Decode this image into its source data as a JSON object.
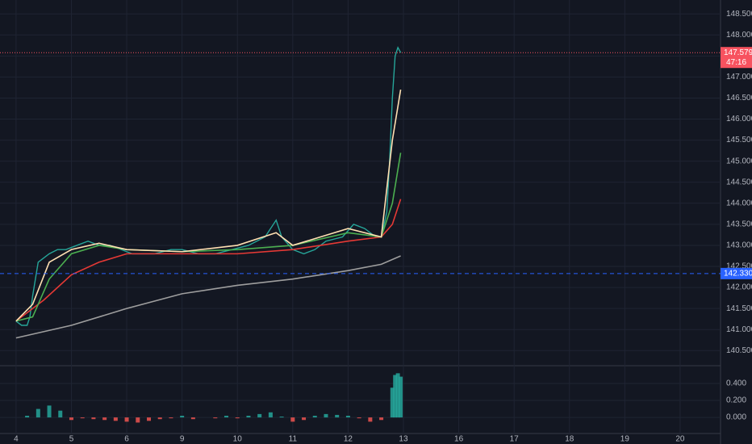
{
  "chart_data": [
    {
      "type": "line",
      "xlim": [
        -0.29,
        12.73
      ],
      "xticks": [
        {
          "value": 0,
          "label": "4"
        },
        {
          "value": 1,
          "label": "5"
        },
        {
          "value": 2,
          "label": "6"
        },
        {
          "value": 3,
          "label": "9"
        },
        {
          "value": 4,
          "label": "10"
        },
        {
          "value": 5,
          "label": "11"
        },
        {
          "value": 6,
          "label": "12"
        },
        {
          "value": 7,
          "label": "13"
        },
        {
          "value": 8,
          "label": "16"
        },
        {
          "value": 9,
          "label": "17"
        },
        {
          "value": 10,
          "label": "18"
        },
        {
          "value": 11,
          "label": "19"
        },
        {
          "value": 12,
          "label": "20"
        }
      ],
      "ylim": [
        140.16,
        148.83
      ],
      "yticks": [
        {
          "value": 140.5,
          "label": "140.500"
        },
        {
          "value": 141,
          "label": "141.000"
        },
        {
          "value": 141.5,
          "label": "141.500"
        },
        {
          "value": 142,
          "label": "142.000"
        },
        {
          "value": 142.5,
          "label": "142.500"
        },
        {
          "value": 143,
          "label": "143.000"
        },
        {
          "value": 143.5,
          "label": "143.500"
        },
        {
          "value": 144,
          "label": "144.000"
        },
        {
          "value": 144.5,
          "label": "144.500"
        },
        {
          "value": 145,
          "label": "145.000"
        },
        {
          "value": 145.5,
          "label": "145.500"
        },
        {
          "value": 146,
          "label": "146.000"
        },
        {
          "value": 146.5,
          "label": "146.500"
        },
        {
          "value": 147,
          "label": "147.000"
        },
        {
          "value": 147.5,
          "label": "147.500"
        },
        {
          "value": 148,
          "label": "148.000"
        },
        {
          "value": 148.5,
          "label": "148.500"
        }
      ],
      "grid": true,
      "series": [
        {
          "color": "#26a69a",
          "x": [
            0,
            0.1,
            0.2,
            0.25,
            0.3,
            0.4,
            0.5,
            0.6,
            0.75,
            0.9,
            1.1,
            1.3,
            1.5,
            1.7,
            1.9,
            2.1,
            2.3,
            2.5,
            2.8,
            3.0,
            3.3,
            3.6,
            3.9,
            4.2,
            4.5,
            4.7,
            4.8,
            5.0,
            5.2,
            5.4,
            5.6,
            5.9,
            6.1,
            6.3,
            6.5,
            6.6,
            6.7,
            6.75,
            6.8,
            6.85,
            6.9,
            6.95
          ],
          "values": [
            141.2,
            141.1,
            141.1,
            141.3,
            141.8,
            142.6,
            142.7,
            142.8,
            142.9,
            142.9,
            143.0,
            143.1,
            143.0,
            143.0,
            142.9,
            142.8,
            142.8,
            142.8,
            142.9,
            142.9,
            142.8,
            142.8,
            142.9,
            143.0,
            143.2,
            143.6,
            143.2,
            142.9,
            142.8,
            142.9,
            143.1,
            143.2,
            143.5,
            143.4,
            143.2,
            143.2,
            143.8,
            145.0,
            146.5,
            147.5,
            147.7,
            147.579
          ]
        },
        {
          "color": "#9e9e9e",
          "x": [
            0,
            1,
            2,
            3,
            4,
            5,
            6,
            6.6,
            6.95
          ],
          "values": [
            140.8,
            141.1,
            141.5,
            141.85,
            142.05,
            142.2,
            142.4,
            142.55,
            142.75
          ]
        },
        {
          "color": "#e53935",
          "x": [
            0,
            0.5,
            1,
            1.5,
            2,
            3,
            4,
            5,
            6,
            6.6,
            6.8,
            6.95
          ],
          "values": [
            141.2,
            141.7,
            142.3,
            142.6,
            142.8,
            142.8,
            142.8,
            142.9,
            143.1,
            143.2,
            143.5,
            144.1
          ]
        },
        {
          "color": "#4caf50",
          "x": [
            0,
            0.3,
            0.6,
            1,
            1.5,
            2,
            3,
            4,
            5,
            6,
            6.6,
            6.8,
            6.95
          ],
          "values": [
            141.2,
            141.3,
            142.2,
            142.8,
            143.0,
            142.9,
            142.85,
            142.9,
            143.0,
            143.3,
            143.2,
            144.0,
            145.2
          ]
        },
        {
          "color": "#ffe0b2",
          "x": [
            0,
            0.3,
            0.6,
            1,
            1.5,
            2,
            3,
            4,
            4.7,
            5,
            6,
            6.6,
            6.8,
            6.95
          ],
          "values": [
            141.2,
            141.6,
            142.6,
            142.9,
            143.05,
            142.9,
            142.85,
            143.0,
            143.3,
            143.0,
            143.4,
            143.2,
            145.5,
            146.7
          ]
        }
      ],
      "last_price": 147.579,
      "last_price_color": "#f7525f",
      "countdown": "47:16",
      "horizontal_line": {
        "value": 142.33,
        "label": "142.330",
        "color": "#2962ff"
      }
    },
    {
      "type": "histogram",
      "ylim": [
        -0.17,
        0.59
      ],
      "yticks": [
        {
          "value": 0,
          "label": "0.000"
        },
        {
          "value": 0.2,
          "label": "0.200"
        },
        {
          "value": 0.4,
          "label": "0.400"
        }
      ],
      "up_color": "#26a69a",
      "down_color": "#ef5350",
      "x": [
        0,
        0.2,
        0.4,
        0.6,
        0.8,
        1.0,
        1.2,
        1.4,
        1.6,
        1.8,
        2.0,
        2.2,
        2.4,
        2.6,
        2.8,
        3.0,
        3.2,
        3.4,
        3.6,
        3.8,
        4.0,
        4.2,
        4.4,
        4.6,
        4.8,
        5.0,
        5.2,
        5.4,
        5.6,
        5.8,
        6.0,
        6.2,
        6.4,
        6.6,
        6.8,
        6.85,
        6.9,
        6.95
      ],
      "values": [
        0.0,
        0.02,
        0.1,
        0.14,
        0.08,
        -0.03,
        -0.01,
        -0.02,
        -0.03,
        -0.04,
        -0.05,
        -0.06,
        -0.04,
        -0.02,
        -0.01,
        0.02,
        -0.02,
        0.0,
        -0.01,
        0.02,
        -0.01,
        0.02,
        0.04,
        0.06,
        0.01,
        -0.05,
        -0.03,
        0.02,
        0.04,
        0.03,
        0.02,
        -0.01,
        -0.05,
        -0.03,
        0.35,
        0.5,
        0.52,
        0.48
      ]
    }
  ]
}
